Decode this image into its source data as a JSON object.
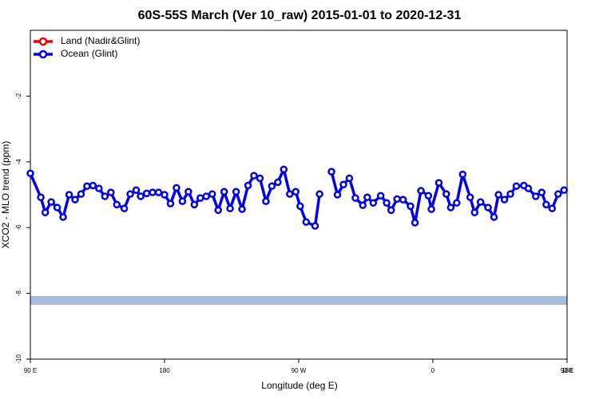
{
  "chart_data": {
    "type": "line",
    "title": "60S-55S March (Ver 10_raw)   2015-01-01 to 2020-12-31",
    "x_label": "Longitude (deg E)",
    "y_label": "XCO2 - MLO trend (ppm)",
    "xlim": [
      90,
      450
    ],
    "xticks": [
      {
        "value": 90,
        "label": "90 E"
      },
      {
        "value": 180,
        "label": "180"
      },
      {
        "value": 270,
        "label": "90 W"
      },
      {
        "value": 360,
        "label": "0"
      },
      {
        "value": 450,
        "label": "90 E"
      },
      {
        "value": 540,
        "label": "180"
      }
    ],
    "ylim": [
      -10,
      0
    ],
    "yticks": [
      -10,
      -8,
      -6,
      -4,
      -2
    ],
    "band": {
      "ylim": [
        -8.35,
        -8.08
      ],
      "color": "#a7bde0"
    },
    "legend": "top-left",
    "x": [
      90,
      97,
      100,
      104,
      108,
      112,
      116,
      120,
      124,
      128,
      132,
      136,
      140,
      144,
      148,
      153,
      157,
      161,
      164,
      168,
      172,
      176,
      180,
      184,
      188,
      192,
      196,
      200,
      204,
      208,
      212,
      216,
      220,
      224,
      228,
      232,
      236,
      240,
      244,
      248,
      252,
      256,
      260,
      264,
      268,
      271,
      275,
      281,
      284,
      290,
      292,
      296,
      300,
      304,
      308,
      313,
      316,
      320,
      325,
      329,
      332,
      336,
      340,
      345,
      348,
      352,
      357,
      359,
      364,
      369,
      372,
      376,
      380,
      385,
      388,
      392,
      397,
      401,
      404,
      408,
      412,
      416,
      421,
      424,
      429,
      433,
      436,
      440,
      444,
      448
    ],
    "series": [
      {
        "name": "Land (Nadir&Glint)",
        "color": "#ee0000",
        "values": [
          null,
          null,
          null,
          null,
          null,
          null,
          null,
          null,
          null,
          null,
          null,
          null,
          null,
          null,
          null,
          null,
          null,
          null,
          null,
          null,
          null,
          null,
          null,
          null,
          null,
          null,
          null,
          null,
          null,
          null,
          null,
          null,
          null,
          null,
          null,
          null,
          null,
          null,
          null,
          null,
          null,
          null,
          null,
          null,
          null,
          null,
          null,
          null,
          null,
          null,
          null,
          null,
          null,
          null,
          null,
          null,
          null,
          null,
          null,
          null,
          null,
          null,
          null,
          null,
          null,
          null,
          null,
          null,
          null,
          null,
          null,
          null,
          null,
          null,
          null,
          null,
          null,
          null,
          null,
          null,
          null,
          null,
          null,
          null,
          null,
          null,
          null,
          null,
          null,
          null
        ]
      },
      {
        "name": "Ocean (Glint)",
        "color": "#0000ee",
        "values": [
          -4.35,
          -5.08,
          -5.54,
          -5.22,
          -5.39,
          -5.68,
          -5.0,
          -5.15,
          -4.98,
          -4.74,
          -4.72,
          -4.81,
          -5.05,
          -4.93,
          -5.3,
          -5.42,
          -4.98,
          -4.86,
          -5.05,
          -4.96,
          -4.93,
          -4.93,
          -5.0,
          -5.27,
          -4.79,
          -5.2,
          -4.91,
          -5.3,
          -5.1,
          -5.05,
          -4.98,
          -5.47,
          -4.91,
          -5.42,
          -4.91,
          -5.44,
          -4.72,
          -4.42,
          -4.5,
          -5.2,
          -4.74,
          -4.62,
          -4.23,
          -4.98,
          -4.91,
          -5.35,
          -5.83,
          -5.95,
          -4.98,
          null,
          -4.3,
          -5.0,
          -4.69,
          -4.5,
          -5.1,
          -5.32,
          -5.08,
          -5.25,
          -5.03,
          -5.25,
          -5.47,
          -5.13,
          -5.15,
          -5.35,
          -5.85,
          -4.88,
          -5.03,
          -5.44,
          -4.64,
          -4.98,
          -5.39,
          -5.25,
          -4.38,
          -5.08,
          -5.54,
          -5.22,
          -5.39,
          -5.68,
          -5.0,
          -5.15,
          -4.98,
          -4.74,
          -4.72,
          -4.81,
          -5.05,
          -4.93,
          -5.3,
          -5.42,
          -4.98,
          -4.86
        ]
      }
    ]
  }
}
